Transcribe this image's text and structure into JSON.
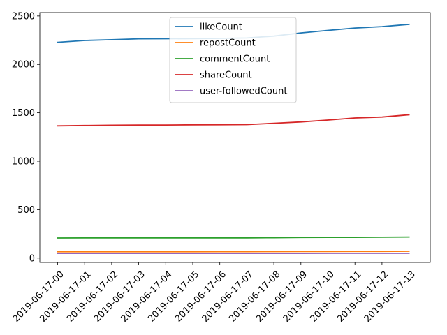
{
  "chart_data": {
    "type": "line",
    "title": "",
    "xlabel": "",
    "ylabel": "",
    "categories": [
      "2019-06-17-00",
      "2019-06-17-01",
      "2019-06-17-02",
      "2019-06-17-03",
      "2019-06-17-04",
      "2019-06-17-05",
      "2019-06-17-06",
      "2019-06-17-07",
      "2019-06-17-08",
      "2019-06-17-09",
      "2019-06-17-10",
      "2019-06-17-11",
      "2019-06-17-12",
      "2019-06-17-13"
    ],
    "ylim": [
      -45,
      2535
    ],
    "yticks": [
      0,
      500,
      1000,
      1500,
      2000,
      2500
    ],
    "grid": false,
    "legend_position": "top-center",
    "series": [
      {
        "name": "likeCount",
        "color": "#1f77b4",
        "values": [
          2228,
          2247,
          2255,
          2264,
          2265,
          2266,
          2268,
          2273,
          2292,
          2325,
          2351,
          2376,
          2390,
          2413
        ]
      },
      {
        "name": "repostCount",
        "color": "#ff7f0e",
        "values": [
          65,
          65,
          65,
          65,
          65,
          65,
          66,
          66,
          67,
          68,
          68,
          69,
          69,
          70
        ]
      },
      {
        "name": "commentCount",
        "color": "#2ca02c",
        "values": [
          207,
          208,
          208,
          208,
          209,
          209,
          209,
          209,
          210,
          213,
          214,
          214,
          215,
          217
        ]
      },
      {
        "name": "shareCount",
        "color": "#d62728",
        "values": [
          1365,
          1369,
          1372,
          1373,
          1374,
          1376,
          1377,
          1378,
          1392,
          1406,
          1425,
          1447,
          1456,
          1480
        ]
      },
      {
        "name": "user-followedCount",
        "color": "#9467bd",
        "values": [
          48,
          48,
          48,
          48,
          48,
          48,
          48,
          48,
          48,
          48,
          49,
          49,
          49,
          49
        ]
      }
    ]
  }
}
